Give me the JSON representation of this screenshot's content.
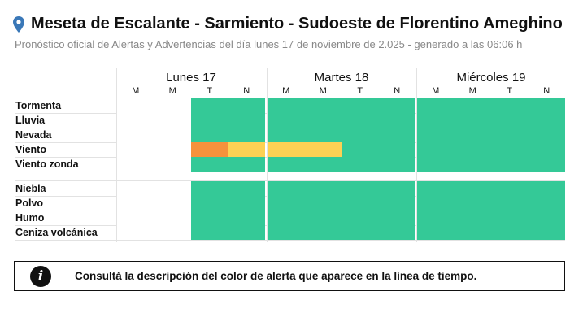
{
  "header": {
    "title": "Meseta de Escalante - Sarmiento - Sudoeste de Florentino Ameghino",
    "subtitle": "Pronóstico oficial de Alertas y Advertencias del día lunes 17 de noviembre de 2.025 - generado a las 06:06 h",
    "icon": "location-pin-icon"
  },
  "colors": {
    "green": "#34c997",
    "yellow": "#fdd154",
    "orange": "#f6923c",
    "blank": "#ffffff",
    "pin": "#3a78b8"
  },
  "timeline": {
    "days": [
      {
        "label": "Lunes 17",
        "periods": [
          "M",
          "M",
          "T",
          "N"
        ]
      },
      {
        "label": "Martes 18",
        "periods": [
          "M",
          "M",
          "T",
          "N"
        ]
      },
      {
        "label": "Miércoles 19",
        "periods": [
          "M",
          "M",
          "T",
          "N"
        ]
      }
    ],
    "rows": [
      {
        "label": "Tormenta",
        "levels": [
          "blank",
          "blank",
          "green",
          "green",
          "green",
          "green",
          "green",
          "green",
          "green",
          "green",
          "green",
          "green"
        ]
      },
      {
        "label": "Lluvia",
        "levels": [
          "blank",
          "blank",
          "green",
          "green",
          "green",
          "green",
          "green",
          "green",
          "green",
          "green",
          "green",
          "green"
        ]
      },
      {
        "label": "Nevada",
        "levels": [
          "blank",
          "blank",
          "green",
          "green",
          "green",
          "green",
          "green",
          "green",
          "green",
          "green",
          "green",
          "green"
        ]
      },
      {
        "label": "Viento",
        "levels": [
          "blank",
          "blank",
          "orange",
          "yellow",
          "yellow",
          "yellow",
          "green",
          "green",
          "green",
          "green",
          "green",
          "green"
        ]
      },
      {
        "label": "Viento zonda",
        "levels": [
          "blank",
          "blank",
          "green",
          "green",
          "green",
          "green",
          "green",
          "green",
          "green",
          "green",
          "green",
          "green"
        ]
      },
      {
        "label": "Niebla",
        "levels": [
          "blank",
          "blank",
          "green",
          "green",
          "green",
          "green",
          "green",
          "green",
          "green",
          "green",
          "green",
          "green"
        ]
      },
      {
        "label": "Polvo",
        "levels": [
          "blank",
          "blank",
          "green",
          "green",
          "green",
          "green",
          "green",
          "green",
          "green",
          "green",
          "green",
          "green"
        ]
      },
      {
        "label": "Humo",
        "levels": [
          "blank",
          "blank",
          "green",
          "green",
          "green",
          "green",
          "green",
          "green",
          "green",
          "green",
          "green",
          "green"
        ]
      },
      {
        "label": "Ceniza volcánica",
        "levels": [
          "blank",
          "blank",
          "green",
          "green",
          "green",
          "green",
          "green",
          "green",
          "green",
          "green",
          "green",
          "green"
        ]
      }
    ]
  },
  "info": {
    "icon": "info-icon",
    "text": "Consultá la descripción del color de alerta que aparece en la línea de tiempo."
  }
}
